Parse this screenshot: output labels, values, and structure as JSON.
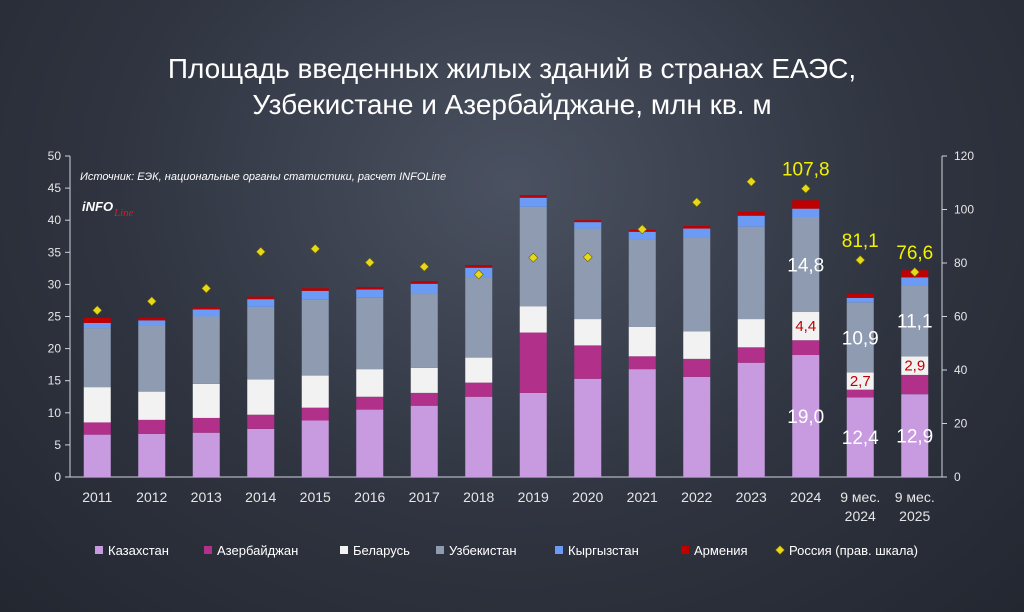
{
  "chart_data": {
    "type": "bar",
    "stacked": true,
    "title_lines": [
      "Площадь введенных жилых зданий в странах ЕАЭС,",
      "Узбекистане и Азербайджане, млн кв. м"
    ],
    "source": "Источник: ЕЭК, национальные органы статистики, расчет INFOLine",
    "logo": {
      "main": "iNFO",
      "accent": "Line"
    },
    "categories": [
      {
        "line1": "2011",
        "line2": ""
      },
      {
        "line1": "2012",
        "line2": ""
      },
      {
        "line1": "2013",
        "line2": ""
      },
      {
        "line1": "2014",
        "line2": ""
      },
      {
        "line1": "2015",
        "line2": ""
      },
      {
        "line1": "2016",
        "line2": ""
      },
      {
        "line1": "2017",
        "line2": ""
      },
      {
        "line1": "2018",
        "line2": ""
      },
      {
        "line1": "2019",
        "line2": ""
      },
      {
        "line1": "2020",
        "line2": ""
      },
      {
        "line1": "2021",
        "line2": ""
      },
      {
        "line1": "2022",
        "line2": ""
      },
      {
        "line1": "2023",
        "line2": ""
      },
      {
        "line1": "2024",
        "line2": ""
      },
      {
        "line1": "9 мес.",
        "line2": "2024"
      },
      {
        "line1": "9 мес.",
        "line2": "2025"
      }
    ],
    "series": [
      {
        "name": "Казахстан",
        "color": "#c89be0",
        "values": [
          6.6,
          6.7,
          6.9,
          7.5,
          8.8,
          10.5,
          11.1,
          12.5,
          13.1,
          15.3,
          16.8,
          15.6,
          17.8,
          19.0,
          12.4,
          12.9
        ]
      },
      {
        "name": "Азербайджан",
        "color": "#b0308a",
        "values": [
          1.9,
          2.2,
          2.3,
          2.2,
          2.0,
          2.0,
          2.0,
          2.2,
          9.4,
          5.2,
          2.0,
          2.8,
          2.4,
          2.3,
          1.2,
          3.0
        ]
      },
      {
        "name": "Беларусь",
        "color": "#f2f2f2",
        "values": [
          5.5,
          4.4,
          5.3,
          5.5,
          5.0,
          4.3,
          3.9,
          3.9,
          4.1,
          4.1,
          4.6,
          4.3,
          4.4,
          4.4,
          2.7,
          2.9
        ]
      },
      {
        "name": "Узбекистан",
        "color": "#8e9bb1",
        "values": [
          9.2,
          10.3,
          10.5,
          11.3,
          11.9,
          11.2,
          11.5,
          12.4,
          15.5,
          14.1,
          13.6,
          14.6,
          14.4,
          14.8,
          10.9,
          11.1
        ]
      },
      {
        "name": "Кыргызстан",
        "color": "#6c9bf5",
        "values": [
          0.8,
          0.8,
          1.1,
          1.2,
          1.3,
          1.2,
          1.6,
          1.6,
          1.4,
          1.0,
          1.2,
          1.4,
          1.7,
          1.3,
          0.7,
          1.2
        ]
      },
      {
        "name": "Армения",
        "color": "#c00000",
        "values": [
          0.8,
          0.4,
          0.4,
          0.4,
          0.4,
          0.4,
          0.4,
          0.4,
          0.4,
          0.3,
          0.3,
          0.4,
          0.6,
          1.3,
          0.6,
          1.1
        ]
      }
    ],
    "secondary_series": {
      "name": "Россия (прав. шкала)",
      "color": "#e8d81a",
      "marker": "diamond",
      "values": [
        62.3,
        65.7,
        70.5,
        84.2,
        85.3,
        80.2,
        78.6,
        75.7,
        82.0,
        82.2,
        92.6,
        102.7,
        110.4,
        107.8,
        81.1,
        76.6
      ]
    },
    "data_labels": [
      {
        "category_index": 13,
        "series": "Казахстан",
        "text": "19,0",
        "style": "white"
      },
      {
        "category_index": 13,
        "series": "Беларусь",
        "text": "4,4",
        "style": "red"
      },
      {
        "category_index": 13,
        "series": "Узбекистан",
        "text": "14,8",
        "style": "white"
      },
      {
        "category_index": 13,
        "series": "Россия",
        "text": "107,8",
        "style": "yellow"
      },
      {
        "category_index": 14,
        "series": "Казахстан",
        "text": "12,4",
        "style": "white"
      },
      {
        "category_index": 14,
        "series": "Беларусь",
        "text": "2,7",
        "style": "red"
      },
      {
        "category_index": 14,
        "series": "Узбекистан",
        "text": "10,9",
        "style": "white"
      },
      {
        "category_index": 14,
        "series": "Россия",
        "text": "81,1",
        "style": "yellow"
      },
      {
        "category_index": 15,
        "series": "Казахстан",
        "text": "12,9",
        "style": "white"
      },
      {
        "category_index": 15,
        "series": "Беларусь",
        "text": "2,9",
        "style": "red"
      },
      {
        "category_index": 15,
        "series": "Узбекистан",
        "text": "11,1",
        "style": "white"
      },
      {
        "category_index": 15,
        "series": "Россия",
        "text": "76,6",
        "style": "yellow"
      }
    ],
    "y_left": {
      "min": 0,
      "max": 50,
      "ticks": [
        "0",
        "5",
        "10",
        "15",
        "20",
        "25",
        "30",
        "35",
        "40",
        "45",
        "50"
      ]
    },
    "y_right": {
      "min": 0,
      "max": 120,
      "ticks": [
        "0",
        "20",
        "40",
        "60",
        "80",
        "100",
        "120"
      ]
    },
    "legend_position": "bottom",
    "grid": false
  }
}
